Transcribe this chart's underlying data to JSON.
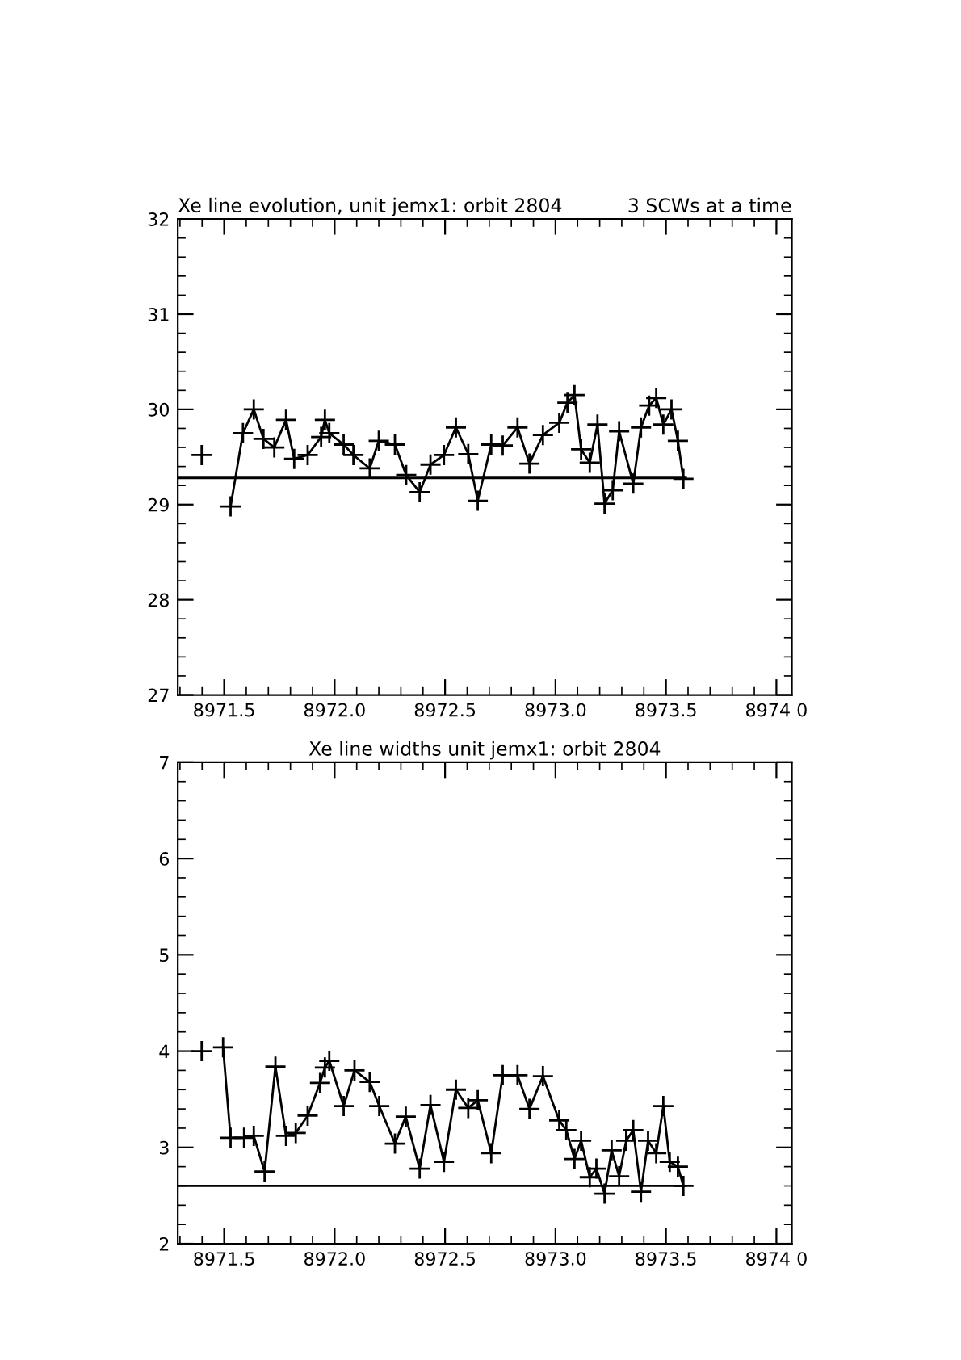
{
  "chart_data": [
    {
      "type": "line",
      "title": "Xe line evolution, unit jemx1: orbit 2804",
      "subtitle": "3 SCWs at a time",
      "xlim": [
        8971.29,
        8974.07
      ],
      "ylim": [
        27,
        32
      ],
      "xticks": [
        8971.5,
        {
          "value": 8972.0,
          "label": "8972.0"
        },
        8972.5,
        {
          "value": 8973.0,
          "label": "8973.0"
        },
        8973.5,
        {
          "value": 8974.0,
          "label": "8974 0"
        }
      ],
      "yticks": [
        27,
        28,
        29,
        30,
        31,
        32
      ],
      "series": [
        {
          "color": "#000000",
          "marker": "cross",
          "line_style": "solid",
          "x": [
            8971.398,
            8971.45,
            8971.529,
            8971.585,
            8971.634,
            8971.678,
            8971.727,
            8971.78,
            8971.817,
            8971.878,
            8971.939,
            8971.956,
            8971.976,
            8972.041,
            8972.085,
            8972.159,
            8972.2,
            8972.273,
            8972.324,
            8972.385,
            8972.434,
            8972.495,
            8972.549,
            8972.605,
            8972.648,
            8972.709,
            8972.761,
            8972.828,
            8972.882,
            8972.943,
            8973.017,
            8973.054,
            8973.086,
            8973.116,
            8973.155,
            8973.19,
            8973.222,
            8973.259,
            8973.288,
            8973.352,
            8973.387,
            8973.424,
            8973.456,
            8973.488,
            8973.525,
            8973.554,
            8973.579
          ],
          "values": [
            29.52,
            null,
            28.98,
            29.75,
            30.0,
            29.69,
            29.6,
            29.89,
            29.48,
            29.52,
            29.71,
            29.89,
            29.75,
            29.63,
            29.52,
            29.38,
            29.67,
            29.63,
            29.31,
            29.13,
            29.42,
            29.52,
            29.81,
            29.53,
            29.04,
            29.63,
            29.62,
            29.81,
            29.43,
            29.73,
            29.86,
            30.07,
            30.15,
            29.58,
            29.44,
            29.84,
            29.01,
            29.15,
            29.77,
            29.22,
            29.81,
            30.04,
            30.12,
            29.84,
            30.0,
            29.67,
            29.27
          ]
        },
        {
          "type": "line",
          "color": "#000000",
          "marker": "none",
          "line_style": "solid",
          "x": [
            8971.29,
            8973.59
          ],
          "values": [
            29.28,
            29.28
          ]
        }
      ]
    },
    {
      "type": "line",
      "title": "Xe line widths unit jemx1: orbit 2804",
      "xlim": [
        8971.29,
        8974.07
      ],
      "ylim": [
        2,
        7
      ],
      "xticks": [
        8971.5,
        {
          "value": 8972.0,
          "label": "8972.0"
        },
        8972.5,
        {
          "value": 8973.0,
          "label": "8973.0"
        },
        8973.5,
        {
          "value": 8974.0,
          "label": "8974 0"
        }
      ],
      "yticks": [
        2,
        3,
        4,
        5,
        6,
        7
      ],
      "series": [
        {
          "color": "#000000",
          "marker": "cross",
          "line_style": "solid",
          "x": [
            8971.398,
            8971.45,
            8971.495,
            8971.529,
            8971.59,
            8971.634,
            8971.683,
            8971.732,
            8971.78,
            8971.824,
            8971.878,
            8971.934,
            8971.956,
            8971.976,
            8972.041,
            8972.09,
            8972.159,
            8972.202,
            8972.273,
            8972.322,
            8972.385,
            8972.434,
            8972.495,
            8972.549,
            8972.605,
            8972.648,
            8972.709,
            8972.761,
            8972.828,
            8972.882,
            8972.943,
            8973.017,
            8973.049,
            8973.086,
            8973.116,
            8973.155,
            8973.185,
            8973.222,
            8973.254,
            8973.288,
            8973.32,
            8973.352,
            8973.387,
            8973.419,
            8973.456,
            8973.488,
            8973.517,
            8973.554,
            8973.579
          ],
          "values": [
            4.0,
            null,
            4.04,
            3.1,
            3.1,
            3.12,
            2.75,
            3.84,
            3.12,
            3.15,
            3.33,
            3.67,
            3.83,
            3.9,
            3.43,
            3.8,
            3.68,
            3.43,
            3.04,
            3.32,
            2.78,
            3.44,
            2.85,
            3.6,
            3.41,
            3.49,
            2.94,
            3.75,
            3.75,
            3.4,
            3.74,
            3.28,
            3.18,
            2.88,
            3.07,
            2.69,
            2.78,
            2.52,
            2.97,
            2.7,
            3.07,
            3.18,
            2.54,
            3.07,
            2.94,
            3.43,
            2.85,
            2.8,
            2.6
          ]
        },
        {
          "type": "line",
          "color": "#000000",
          "marker": "none",
          "line_style": "solid",
          "x": [
            8971.29,
            8973.59
          ],
          "values": [
            2.6,
            2.6
          ]
        }
      ]
    }
  ]
}
